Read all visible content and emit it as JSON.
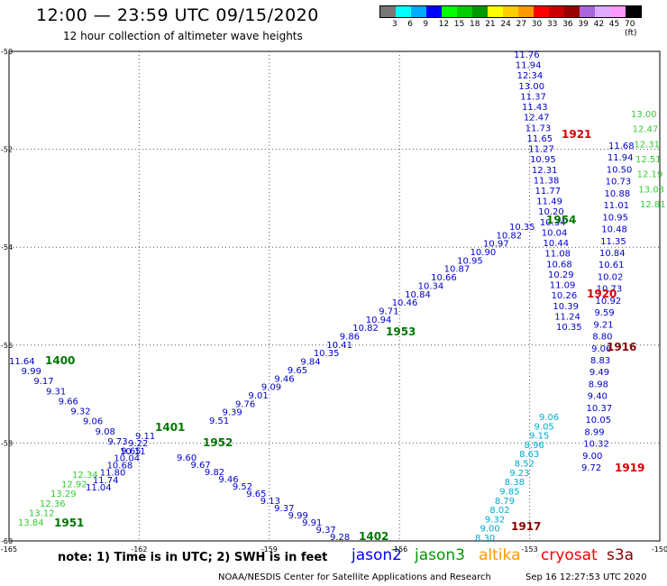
{
  "header": {
    "title": "12:00 — 23:59 UTC 09/15/2020",
    "subtitle": "12 hour collection of altimeter wave heights"
  },
  "color_scale": {
    "colors": [
      "#777777",
      "#00ffff",
      "#00aaff",
      "#0000ff",
      "#00ff00",
      "#00cc00",
      "#009900",
      "#ffff00",
      "#ffcc00",
      "#ff9900",
      "#ff0000",
      "#cc0000",
      "#990000",
      "#aa66dd",
      "#ddaaff",
      "#ff99ff",
      "#000000"
    ],
    "labels": [
      "3",
      "6",
      "9",
      "12",
      "15",
      "18",
      "21",
      "24",
      "27",
      "30",
      "33",
      "36",
      "39",
      "42",
      "45",
      "70 (ft)"
    ]
  },
  "map": {
    "lat_labels": [
      "-50",
      "-52",
      "-54",
      "-56",
      "-58",
      "-60"
    ],
    "lon_labels": [
      "-165",
      "-162",
      "-159",
      "-156",
      "-153",
      "-150"
    ],
    "extent": {
      "lon_min": -165,
      "lon_max": -150,
      "lat_min": -60,
      "lat_max": -50
    }
  },
  "tracks": [
    {
      "satellite": "jason2",
      "color": "#0000cc",
      "time_label": "1400",
      "time_color": "#007700",
      "points": [
        "11.64",
        "9.99",
        "9.17",
        "9.31",
        "9.66",
        "9.32",
        "9.06",
        "9.08",
        "9.73",
        "10.11",
        "9.11",
        "9.22",
        "9.65",
        "10.04",
        "10.68",
        "11.80",
        "11.74",
        "11.04"
      ]
    },
    {
      "satellite": "jason2",
      "color": "#0000cc",
      "time_label": "1953",
      "time_color": "#007700",
      "points": [
        "9.51",
        "9.39",
        "9.76",
        "9.01",
        "9.09",
        "9.46",
        "9.65",
        "9.84",
        "10.35",
        "10.41",
        "9.86",
        "10.82",
        "10.94",
        "9.71",
        "10.46",
        "10.84",
        "10.34",
        "10.66",
        "10.87",
        "10.95",
        "10.90",
        "10.97",
        "10.82",
        "10.35"
      ]
    },
    {
      "satellite": "jason2",
      "color": "#0000cc",
      "time_label": "1402",
      "time_color": "#007700",
      "points": [
        "9.60",
        "9.67",
        "9.82",
        "9.46",
        "9.52",
        "9.65",
        "9.13",
        "9.37",
        "9.99",
        "9.91",
        "9.37",
        "9.28"
      ]
    },
    {
      "satellite": "jason3",
      "color": "#0000cc",
      "time_label": "1954",
      "time_color": "#007700",
      "points": [
        "11.76",
        "11.94",
        "12.34",
        "13.00",
        "11.37",
        "11.43",
        "12.47",
        "11.73",
        "11.65",
        "11.27",
        "10.95",
        "12.31",
        "11.38",
        "11.77",
        "11.49",
        "10.20",
        "10.34",
        "10.04",
        "10.44",
        "11.08",
        "10.68",
        "10.29",
        "11.09",
        "10.26",
        "10.39",
        "11.24",
        "10.35"
      ]
    },
    {
      "satellite": "cryosat",
      "color": "#0000cc",
      "time_label": "1921",
      "time_color": "#dd0000",
      "points": [
        "11.68",
        "11.94",
        "10.50",
        "10.73",
        "10.88",
        "11.01",
        "10.95",
        "10.48",
        "11.35",
        "10.84",
        "10.61",
        "10.02",
        "10.73",
        "10.92",
        "9.59",
        "9.21",
        "8.80",
        "9.06",
        "8.83",
        "9.49",
        "8.98",
        "9.40",
        "10.37",
        "10.05",
        "8.99",
        "10.32",
        "9.00",
        "9.72"
      ]
    },
    {
      "satellite": "s3a",
      "color": "#880000",
      "time_label": "1917",
      "time_color": "#880000",
      "points": [
        "9.06",
        "9.05",
        "9.15",
        "8.96",
        "8.63",
        "8.52",
        "9.23",
        "8.38",
        "9.85",
        "8.79",
        "8.02",
        "9.32",
        "9.00",
        "8.30"
      ]
    }
  ],
  "time_labels": [
    {
      "text": "1400",
      "color": "#007700"
    },
    {
      "text": "1401",
      "color": "#007700"
    },
    {
      "text": "1952",
      "color": "#007700"
    },
    {
      "text": "1951",
      "color": "#007700"
    },
    {
      "text": "1953",
      "color": "#007700"
    },
    {
      "text": "1954",
      "color": "#007700"
    },
    {
      "text": "1402",
      "color": "#007700"
    },
    {
      "text": "1921",
      "color": "#dd0000"
    },
    {
      "text": "1920",
      "color": "#dd0000"
    },
    {
      "text": "1916",
      "color": "#880000"
    },
    {
      "text": "1919",
      "color": "#dd0000"
    },
    {
      "text": "1917",
      "color": "#880000"
    }
  ],
  "green_points": [
    "13.84",
    "13.12",
    "12.36",
    "13.29",
    "12.92",
    "12.34",
    "13.00",
    "12.47",
    "12.31",
    "12.51",
    "12.19",
    "13.03",
    "12.81"
  ],
  "cyan_points": [
    "8.97",
    "7.89",
    "8.48",
    "9.00",
    "8.80",
    "8.80",
    "8.83",
    "8.51",
    "8.63",
    "8.52",
    "8.38",
    "8.79",
    "8.02",
    "8.30",
    "9.00",
    "8.99"
  ],
  "note": "note:  1) Time is in UTC; 2) SWH is in feet",
  "legend": [
    {
      "name": "jason2",
      "color": "#0000ff"
    },
    {
      "name": "jason3",
      "color": "#009900"
    },
    {
      "name": "altika",
      "color": "#ff9900"
    },
    {
      "name": "cryosat",
      "color": "#ff0000"
    },
    {
      "name": "s3a",
      "color": "#880000"
    }
  ],
  "footer": {
    "left": "NOAA/NESDIS Center for Satellite Applications and Research",
    "right": "Sep 16 12:27:53 UTC 2020"
  }
}
